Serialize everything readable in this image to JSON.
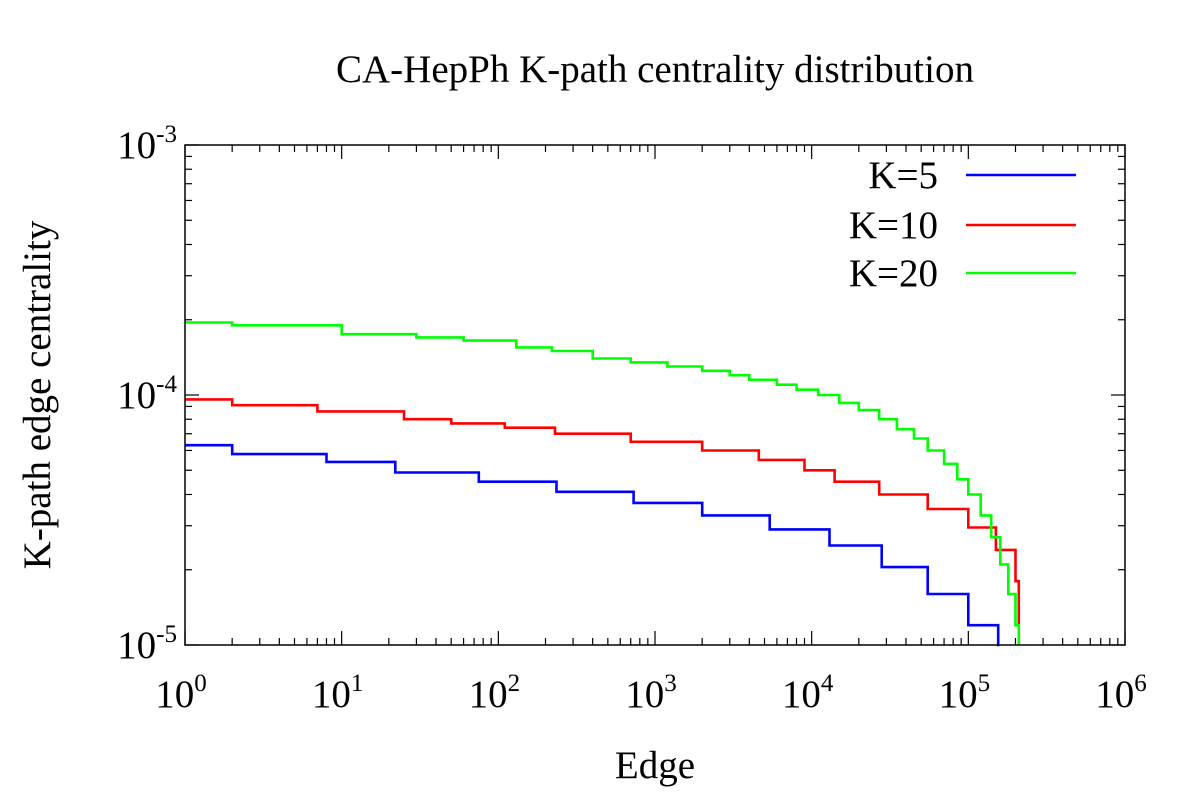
{
  "chart_data": {
    "type": "line",
    "title": "CA-HepPh K-path centrality distribution",
    "xlabel": "Edge",
    "ylabel": "K-path edge centrality",
    "xscale": "log",
    "yscale": "log",
    "xlim": [
      1,
      1000000
    ],
    "ylim": [
      1e-05,
      0.001
    ],
    "x_ticks": [
      {
        "base": "10",
        "exp": "0",
        "value": 1
      },
      {
        "base": "10",
        "exp": "1",
        "value": 10
      },
      {
        "base": "10",
        "exp": "2",
        "value": 100
      },
      {
        "base": "10",
        "exp": "3",
        "value": 1000
      },
      {
        "base": "10",
        "exp": "4",
        "value": 10000
      },
      {
        "base": "10",
        "exp": "5",
        "value": 100000
      },
      {
        "base": "10",
        "exp": "6",
        "value": 1000000
      }
    ],
    "y_ticks": [
      {
        "base": "10",
        "exp": "-5",
        "value": 1e-05
      },
      {
        "base": "10",
        "exp": "-4",
        "value": 0.0001
      },
      {
        "base": "10",
        "exp": "-3",
        "value": 0.001
      }
    ],
    "grid": false,
    "legend_position": "top-right",
    "series": [
      {
        "name": "K=5",
        "color": "#0000ff",
        "step": true,
        "x": [
          1,
          2,
          8,
          22,
          75,
          235,
          730,
          2000,
          5400,
          13000,
          28000,
          55000,
          100000,
          155000,
          158000
        ],
        "y": [
          6.3e-05,
          5.8e-05,
          5.4e-05,
          4.9e-05,
          4.5e-05,
          4.1e-05,
          3.7e-05,
          3.3e-05,
          2.9e-05,
          2.5e-05,
          2.05e-05,
          1.6e-05,
          1.2e-05,
          1e-05,
          1e-05
        ]
      },
      {
        "name": "K=10",
        "color": "#ff0000",
        "step": true,
        "x": [
          1,
          2,
          7,
          25,
          50,
          110,
          230,
          700,
          2000,
          4600,
          9000,
          14000,
          27000,
          55000,
          100000,
          150000,
          200000,
          210000
        ],
        "y": [
          9.6e-05,
          9.1e-05,
          8.6e-05,
          8e-05,
          7.7e-05,
          7.4e-05,
          7e-05,
          6.5e-05,
          6e-05,
          5.5e-05,
          5e-05,
          4.5e-05,
          4e-05,
          3.5e-05,
          2.95e-05,
          2.4e-05,
          1.8e-05,
          1.05e-05
        ]
      },
      {
        "name": "K=20",
        "color": "#00ff00",
        "step": true,
        "x": [
          1,
          2,
          10,
          30,
          60,
          130,
          220,
          400,
          700,
          1200,
          2000,
          3000,
          4000,
          6000,
          8000,
          11000,
          15000,
          20000,
          27000,
          35000,
          45000,
          55000,
          70000,
          85000,
          100000,
          120000,
          140000,
          160000,
          180000,
          200000,
          210000
        ],
        "y": [
          0.000195,
          0.00019,
          0.000175,
          0.00017,
          0.000165,
          0.000155,
          0.00015,
          0.00014,
          0.000135,
          0.00013,
          0.000125,
          0.00012,
          0.000115,
          0.00011,
          0.000105,
          0.0001,
          9.3e-05,
          8.7e-05,
          8e-05,
          7.3e-05,
          6.7e-05,
          6e-05,
          5.3e-05,
          4.6e-05,
          4e-05,
          3.3e-05,
          2.7e-05,
          2.1e-05,
          1.6e-05,
          1.2e-05,
          1.05e-05
        ]
      }
    ]
  }
}
